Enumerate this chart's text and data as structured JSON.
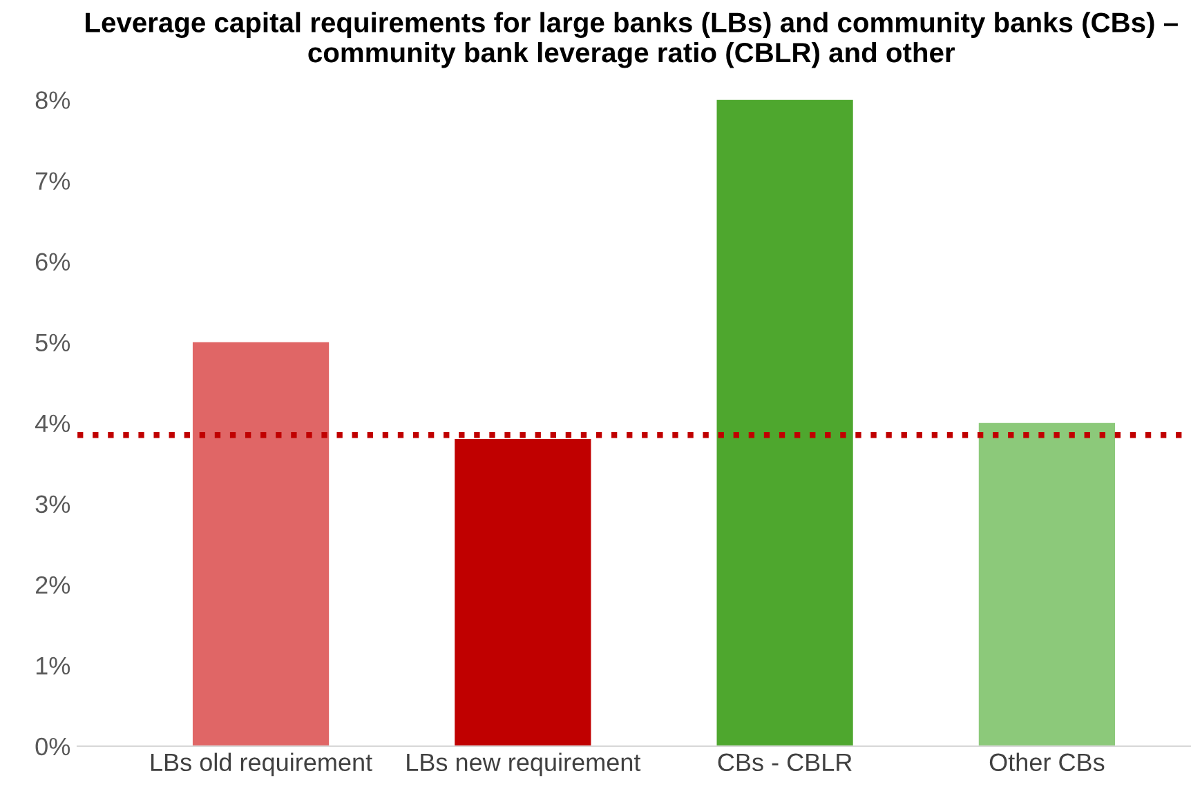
{
  "chart_data": {
    "type": "bar",
    "title": "Leverage capital requirements for large banks (LBs) and community banks (CBs) – community bank leverage ratio (CBLR) and other",
    "categories": [
      "LBs old requirement",
      "LBs new requirement",
      "CBs - CBLR",
      "Other CBs"
    ],
    "values": [
      5,
      3.8,
      8,
      4
    ],
    "colors": [
      "#e06666",
      "#c00000",
      "#4ea72e",
      "#8cc97a"
    ],
    "ylim": [
      0,
      8
    ],
    "yticks": [
      {
        "value": 0,
        "label": "0%"
      },
      {
        "value": 1,
        "label": "1%"
      },
      {
        "value": 2,
        "label": "2%"
      },
      {
        "value": 3,
        "label": "3%"
      },
      {
        "value": 4,
        "label": "4%"
      },
      {
        "value": 5,
        "label": "5%"
      },
      {
        "value": 6,
        "label": "6%"
      },
      {
        "value": 7,
        "label": "7%"
      },
      {
        "value": 8,
        "label": "8%"
      }
    ],
    "ref_lines": [
      {
        "axis": "y",
        "value": 3.85,
        "color": "#c00000",
        "line_style": "dotted"
      }
    ],
    "grid": false
  }
}
